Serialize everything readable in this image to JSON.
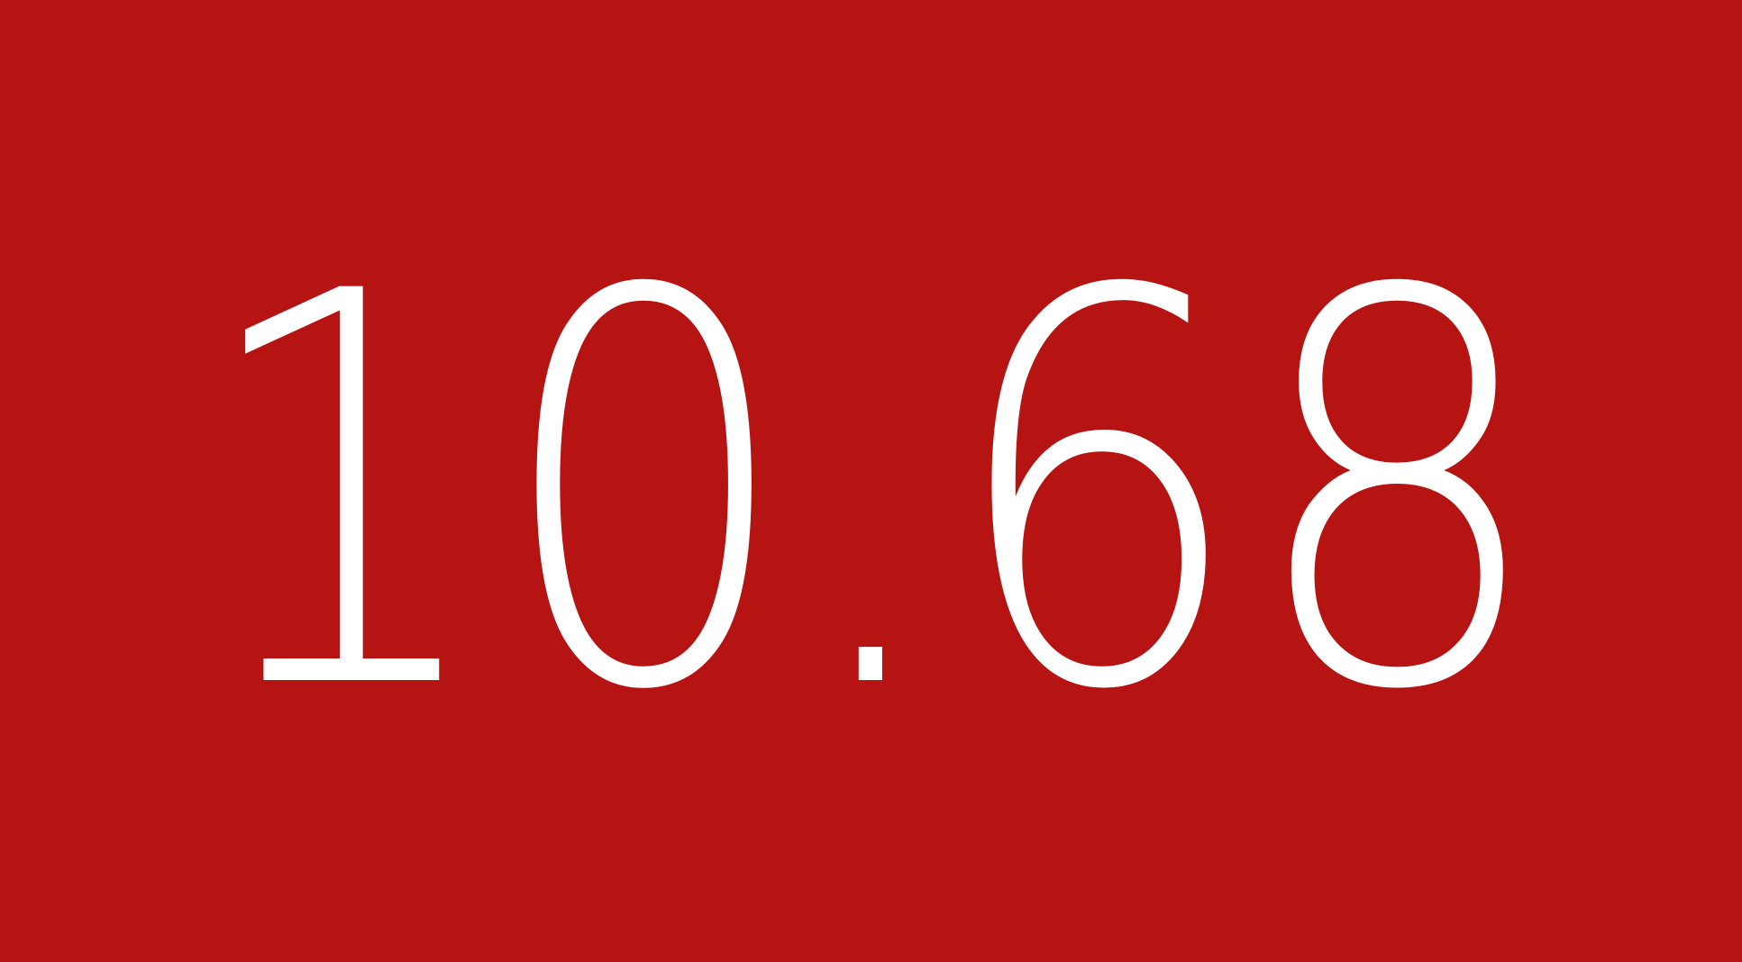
{
  "display": {
    "value": "10.68",
    "background_color": "#b51412",
    "text_color": "#ffffff"
  }
}
